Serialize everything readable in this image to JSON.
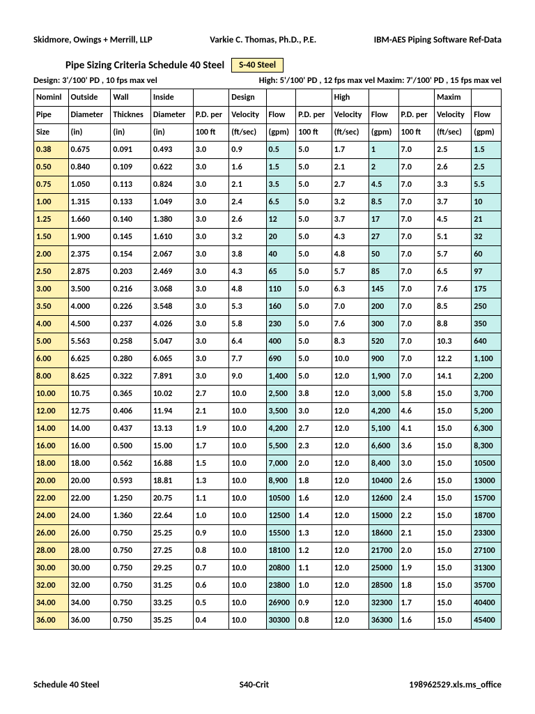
{
  "header": {
    "left": "Skidmore, Owings + Merrill, LLP",
    "center": "Varkie C. Thomas, Ph.D., P.E.",
    "right": "IBM-AES Piping Software Ref-Data"
  },
  "title": {
    "main": "Pipe Sizing Criteria   Schedule 40 Steel",
    "badge": "S-40 Steel"
  },
  "design_line": {
    "left": "Design:  3'/100' PD , 10 fps max vel",
    "right": "High: 5'/100' PD , 12 fps max vel Maxim: 7'/100' PD , 15 fps max vel"
  },
  "columns": {
    "row1": [
      "Nominl",
      "Outside",
      "Wall",
      "Inside",
      "",
      "Design",
      "",
      "",
      "High",
      "",
      "",
      "Maxim",
      ""
    ],
    "row2": [
      "Pipe",
      "Diameter",
      "Thicknes",
      "Diameter",
      "P.D. per",
      "Velocity",
      "Flow",
      "P.D. per",
      "Velocity",
      "Flow",
      "P.D. per",
      "Velocity",
      "Flow"
    ],
    "row3": [
      "Size",
      "(in)",
      "(in)",
      "(in)",
      "100 ft",
      "(ft/sec)",
      "(gpm)",
      "100 ft",
      "(ft/sec)",
      "(gpm)",
      "100 ft",
      "(ft/sec)",
      "(gpm)"
    ]
  },
  "highlights": {
    "header_yellow_cols": [
      5,
      8,
      11
    ],
    "row_yellow_col": 0,
    "row_cyan_cols": [
      6,
      9,
      12
    ]
  },
  "colors": {
    "yellow": "#fff2b3",
    "cyan": "#c7f0ed",
    "border": "#000000",
    "text": "#000000",
    "background": "#ffffff"
  },
  "typography": {
    "body_font": "Calibri, Arial, sans-serif",
    "header_size_pt": 13,
    "title_size_pt": 15,
    "table_size_pt": 12,
    "weight": 700
  },
  "rows": [
    [
      "0.38",
      "0.675",
      "0.091",
      "0.493",
      "3.0",
      "0.9",
      "0.5",
      "5.0",
      "1.7",
      "1",
      "7.0",
      "2.5",
      "1.5"
    ],
    [
      "0.50",
      "0.840",
      "0.109",
      "0.622",
      "3.0",
      "1.6",
      "1.5",
      "5.0",
      "2.1",
      "2",
      "7.0",
      "2.6",
      "2.5"
    ],
    [
      "0.75",
      "1.050",
      "0.113",
      "0.824",
      "3.0",
      "2.1",
      "3.5",
      "5.0",
      "2.7",
      "4.5",
      "7.0",
      "3.3",
      "5.5"
    ],
    [
      "1.00",
      "1.315",
      "0.133",
      "1.049",
      "3.0",
      "2.4",
      "6.5",
      "5.0",
      "3.2",
      "8.5",
      "7.0",
      "3.7",
      "10"
    ],
    [
      "1.25",
      "1.660",
      "0.140",
      "1.380",
      "3.0",
      "2.6",
      "12",
      "5.0",
      "3.7",
      "17",
      "7.0",
      "4.5",
      "21"
    ],
    [
      "1.50",
      "1.900",
      "0.145",
      "1.610",
      "3.0",
      "3.2",
      "20",
      "5.0",
      "4.3",
      "27",
      "7.0",
      "5.1",
      "32"
    ],
    [
      "2.00",
      "2.375",
      "0.154",
      "2.067",
      "3.0",
      "3.8",
      "40",
      "5.0",
      "4.8",
      "50",
      "7.0",
      "5.7",
      "60"
    ],
    [
      "2.50",
      "2.875",
      "0.203",
      "2.469",
      "3.0",
      "4.3",
      "65",
      "5.0",
      "5.7",
      "85",
      "7.0",
      "6.5",
      "97"
    ],
    [
      "3.00",
      "3.500",
      "0.216",
      "3.068",
      "3.0",
      "4.8",
      "110",
      "5.0",
      "6.3",
      "145",
      "7.0",
      "7.6",
      "175"
    ],
    [
      "3.50",
      "4.000",
      "0.226",
      "3.548",
      "3.0",
      "5.3",
      "160",
      "5.0",
      "7.0",
      "200",
      "7.0",
      "8.5",
      "250"
    ],
    [
      "4.00",
      "4.500",
      "0.237",
      "4.026",
      "3.0",
      "5.8",
      "230",
      "5.0",
      "7.6",
      "300",
      "7.0",
      "8.8",
      "350"
    ],
    [
      "5.00",
      "5.563",
      "0.258",
      "5.047",
      "3.0",
      "6.4",
      "400",
      "5.0",
      "8.3",
      "520",
      "7.0",
      "10.3",
      "640"
    ],
    [
      "6.00",
      "6.625",
      "0.280",
      "6.065",
      "3.0",
      "7.7",
      "690",
      "5.0",
      "10.0",
      "900",
      "7.0",
      "12.2",
      "1,100"
    ],
    [
      "8.00",
      "8.625",
      "0.322",
      "7.891",
      "3.0",
      "9.0",
      "1,400",
      "5.0",
      "12.0",
      "1,900",
      "7.0",
      "14.1",
      "2,200"
    ],
    [
      "10.00",
      "10.75",
      "0.365",
      "10.02",
      "2.7",
      "10.0",
      "2,500",
      "3.8",
      "12.0",
      "3,000",
      "5.8",
      "15.0",
      "3,700"
    ],
    [
      "12.00",
      "12.75",
      "0.406",
      "11.94",
      "2.1",
      "10.0",
      "3,500",
      "3.0",
      "12.0",
      "4,200",
      "4.6",
      "15.0",
      "5,200"
    ],
    [
      "14.00",
      "14.00",
      "0.437",
      "13.13",
      "1.9",
      "10.0",
      "4,200",
      "2.7",
      "12.0",
      "5,100",
      "4.1",
      "15.0",
      "6,300"
    ],
    [
      "16.00",
      "16.00",
      "0.500",
      "15.00",
      "1.7",
      "10.0",
      "5,500",
      "2.3",
      "12.0",
      "6,600",
      "3.6",
      "15.0",
      "8,300"
    ],
    [
      "18.00",
      "18.00",
      "0.562",
      "16.88",
      "1.5",
      "10.0",
      "7,000",
      "2.0",
      "12.0",
      "8,400",
      "3.0",
      "15.0",
      "10500"
    ],
    [
      "20.00",
      "20.00",
      "0.593",
      "18.81",
      "1.3",
      "10.0",
      "8,900",
      "1.8",
      "12.0",
      "10400",
      "2.6",
      "15.0",
      "13000"
    ],
    [
      "22.00",
      "22.00",
      "1.250",
      "20.75",
      "1.1",
      "10.0",
      "10500",
      "1.6",
      "12.0",
      "12600",
      "2.4",
      "15.0",
      "15700"
    ],
    [
      "24.00",
      "24.00",
      "1.360",
      "22.64",
      "1.0",
      "10.0",
      "12500",
      "1.4",
      "12.0",
      "15000",
      "2.2",
      "15.0",
      "18700"
    ],
    [
      "26.00",
      "26.00",
      "0.750",
      "25.25",
      "0.9",
      "10.0",
      "15500",
      "1.3",
      "12.0",
      "18600",
      "2.1",
      "15.0",
      "23300"
    ],
    [
      "28.00",
      "28.00",
      "0.750",
      "27.25",
      "0.8",
      "10.0",
      "18100",
      "1.2",
      "12.0",
      "21700",
      "2.0",
      "15.0",
      "27100"
    ],
    [
      "30.00",
      "30.00",
      "0.750",
      "29.25",
      "0.7",
      "10.0",
      "20800",
      "1.1",
      "12.0",
      "25000",
      "1.9",
      "15.0",
      "31300"
    ],
    [
      "32.00",
      "32.00",
      "0.750",
      "31.25",
      "0.6",
      "10.0",
      "23800",
      "1.0",
      "12.0",
      "28500",
      "1.8",
      "15.0",
      "35700"
    ],
    [
      "34.00",
      "34.00",
      "0.750",
      "33.25",
      "0.5",
      "10.0",
      "26900",
      "0.9",
      "12.0",
      "32300",
      "1.7",
      "15.0",
      "40400"
    ],
    [
      "36.00",
      "36.00",
      "0.750",
      "35.25",
      "0.4",
      "10.0",
      "30300",
      "0.8",
      "12.0",
      "36300",
      "1.6",
      "15.0",
      "45400"
    ]
  ],
  "footer": {
    "left": "Schedule 40 Steel",
    "center": "S40-Crit",
    "right": "198962529.xls.ms_office"
  }
}
